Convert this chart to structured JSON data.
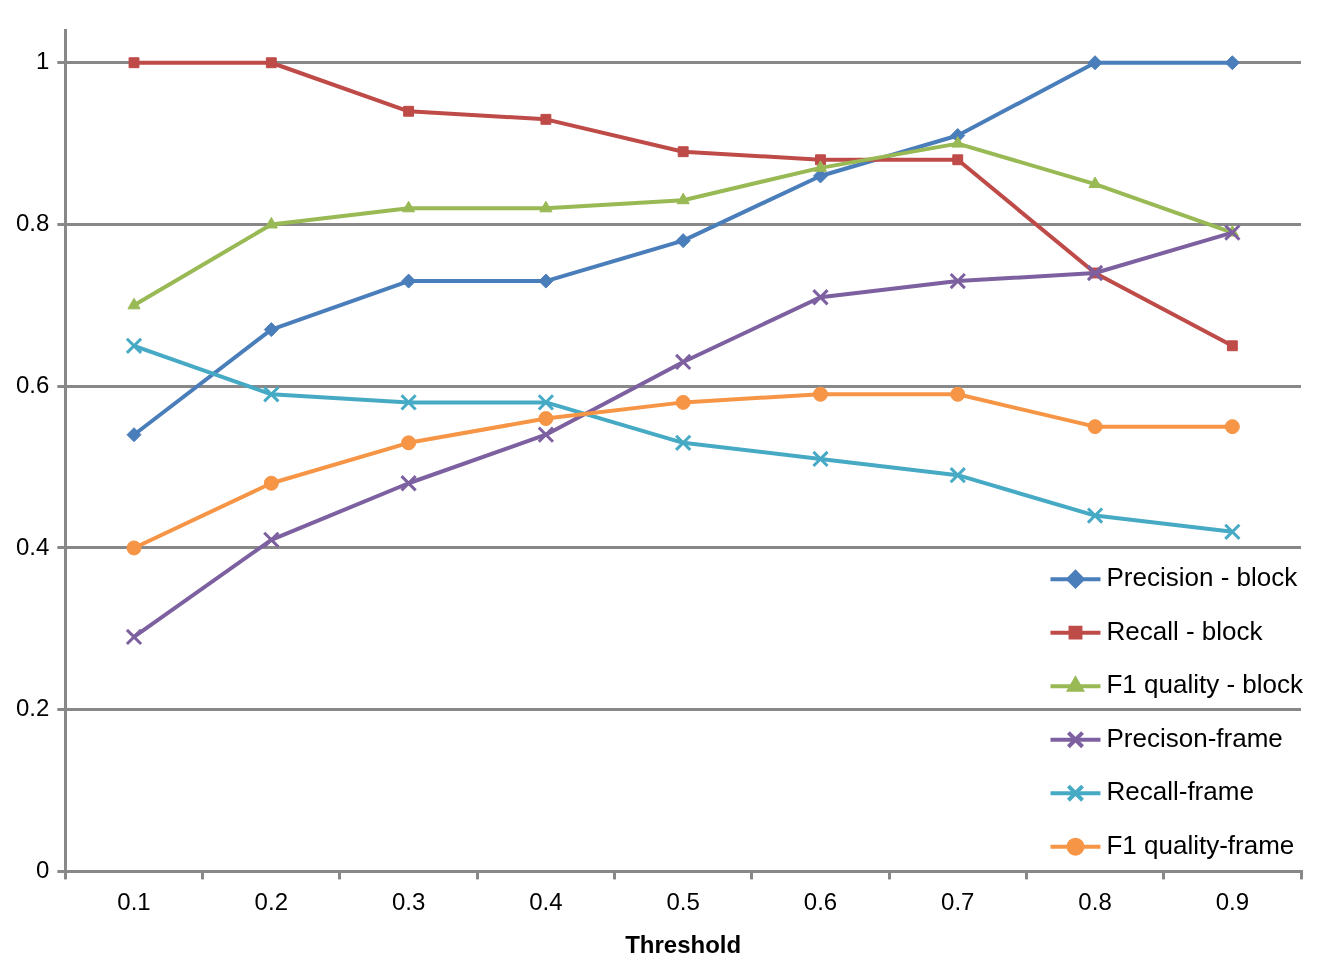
{
  "chart_data": {
    "type": "line",
    "xlabel": "Threshold",
    "categories": [
      "0.1",
      "0.2",
      "0.3",
      "0.4",
      "0.5",
      "0.6",
      "0.7",
      "0.8",
      "0.9"
    ],
    "ylim": [
      0,
      1.04
    ],
    "yticks": [
      0,
      0.2,
      0.4,
      0.6,
      0.8,
      1
    ],
    "grid": "y",
    "legend": "bottom right",
    "line_style": "solid",
    "series": [
      {
        "name": "Precision - block",
        "color": "#4a7ebb",
        "marker": "diamond",
        "values": [
          0.54,
          0.67,
          0.73,
          0.73,
          0.78,
          0.86,
          0.91,
          1,
          1
        ]
      },
      {
        "name": "Recall - block",
        "color": "#be4b48",
        "marker": "square",
        "values": [
          1,
          1,
          0.94,
          0.93,
          0.89,
          0.88,
          0.88,
          0.74,
          0.65
        ]
      },
      {
        "name": "F1 quality - block",
        "color": "#98b954",
        "marker": "triangle",
        "values": [
          0.7,
          0.8,
          0.82,
          0.82,
          0.83,
          0.87,
          0.9,
          0.85,
          0.79
        ]
      },
      {
        "name": "Precison-frame",
        "color": "#7d60a0",
        "marker": "cross",
        "values": [
          0.29,
          0.41,
          0.48,
          0.54,
          0.63,
          0.71,
          0.73,
          0.74,
          0.79
        ]
      },
      {
        "name": "Recall-frame",
        "color": "#46aac5",
        "marker": "cross",
        "values": [
          0.65,
          0.59,
          0.58,
          0.58,
          0.53,
          0.51,
          0.49,
          0.44,
          0.42
        ]
      },
      {
        "name": "F1 quality-frame",
        "color": "#f69546",
        "marker": "circle",
        "values": [
          0.4,
          0.48,
          0.53,
          0.56,
          0.58,
          0.59,
          0.59,
          0.55,
          0.55
        ]
      }
    ]
  }
}
